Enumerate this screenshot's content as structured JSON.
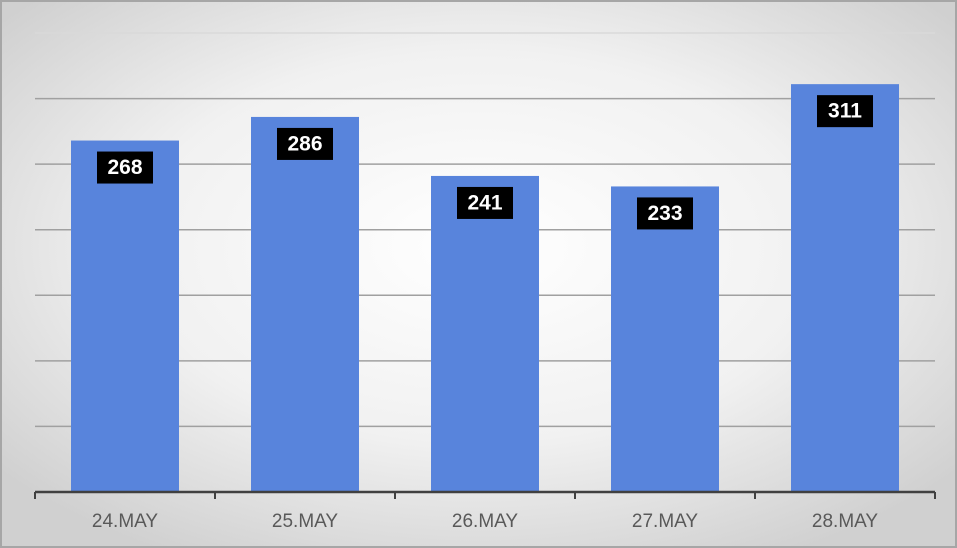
{
  "chart_data": {
    "type": "bar",
    "categories": [
      "24.MAY",
      "25.MAY",
      "26.MAY",
      "27.MAY",
      "28.MAY"
    ],
    "values": [
      268,
      286,
      241,
      233,
      311
    ],
    "color": "#5884dc",
    "ylim": [
      0,
      350
    ],
    "yticks": [
      0,
      50,
      100,
      150,
      200,
      250,
      300,
      350
    ],
    "grid": true
  }
}
